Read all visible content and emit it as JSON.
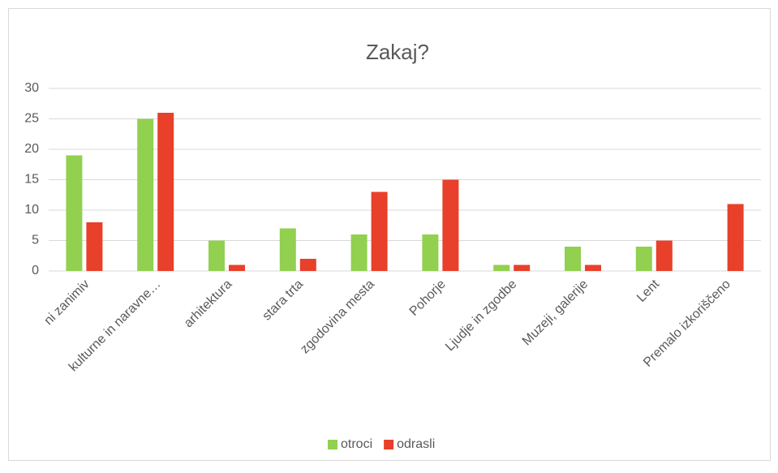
{
  "chart_data": {
    "type": "bar",
    "title": "Zakaj?",
    "categories": [
      "ni  zanimiv",
      "kulturne in naravne…",
      "arhitektura",
      "stara trta",
      "zgodovina mesta",
      "Pohorje",
      "Ljudje in zgodbe",
      "Muzeji, galerije",
      "Lent",
      "Premalo izkoriščeno"
    ],
    "series": [
      {
        "name": "otroci",
        "color": "#92d050",
        "values": [
          19,
          25,
          5,
          7,
          6,
          6,
          1,
          4,
          4,
          null
        ]
      },
      {
        "name": "odrasli",
        "color": "#e8402a",
        "values": [
          8,
          26,
          1,
          2,
          13,
          15,
          1,
          1,
          5,
          11
        ]
      }
    ],
    "ylim": [
      0,
      30
    ],
    "yticks": [
      0,
      5,
      10,
      15,
      20,
      25,
      30
    ],
    "grid": true,
    "legend": "bottom"
  }
}
